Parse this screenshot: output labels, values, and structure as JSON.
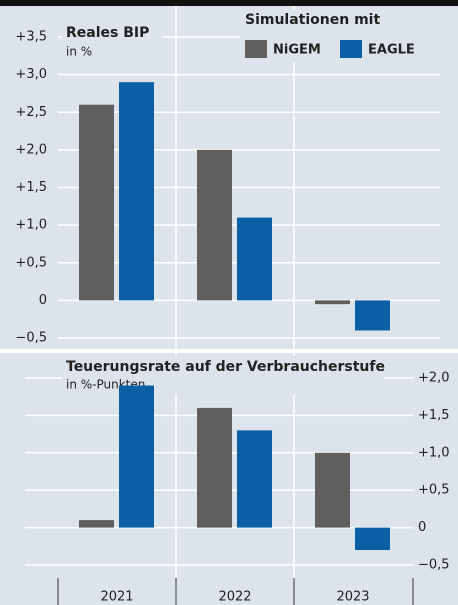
{
  "chart_data": [
    {
      "type": "bar",
      "title": "Reales BIP",
      "subtitle": "in %",
      "legend_title": "Simulationen mit",
      "series": [
        {
          "name": "NiGEM",
          "color": "#5f5f5f",
          "values": [
            2.6,
            2.0,
            -0.05
          ]
        },
        {
          "name": "EAGLE",
          "color": "#0b5fa5",
          "values": [
            2.9,
            1.1,
            -0.4
          ]
        }
      ],
      "ylim": [
        -0.65,
        3.65
      ],
      "yticks": [
        {
          "value": 3.5,
          "label": "+3,5"
        },
        {
          "value": 3.0,
          "label": "+3,0"
        },
        {
          "value": 2.5,
          "label": "+2,5"
        },
        {
          "value": 2.0,
          "label": "+2,0"
        },
        {
          "value": 1.5,
          "label": "+1,5"
        },
        {
          "value": 1.0,
          "label": "+1,0"
        },
        {
          "value": 0.5,
          "label": "+0,5"
        },
        0,
        {
          "value": -0.5,
          "label": "−0,5"
        }
      ],
      "grid": true
    },
    {
      "type": "bar",
      "title": "Teuerungsrate auf der Verbraucherstufe",
      "subtitle": "in %-Punkten",
      "categories": [
        "2021",
        "2022",
        "2023"
      ],
      "series": [
        {
          "color": "#5f5f5f",
          "values": [
            0.1,
            1.6,
            1.0
          ]
        },
        {
          "color": "#0b5fa5",
          "values": [
            1.9,
            1.3,
            -0.3
          ]
        }
      ],
      "ylim": [
        -0.65,
        2.1
      ],
      "yticks": [
        {
          "value": 2.0,
          "label": "+2,0"
        },
        {
          "value": 1.5,
          "label": "+1,5"
        },
        {
          "value": 1.0,
          "label": "+1,0"
        },
        {
          "value": 0.5,
          "label": "+0,5"
        },
        0,
        {
          "value": -0.5,
          "label": "−0,5"
        }
      ],
      "grid": true
    }
  ]
}
